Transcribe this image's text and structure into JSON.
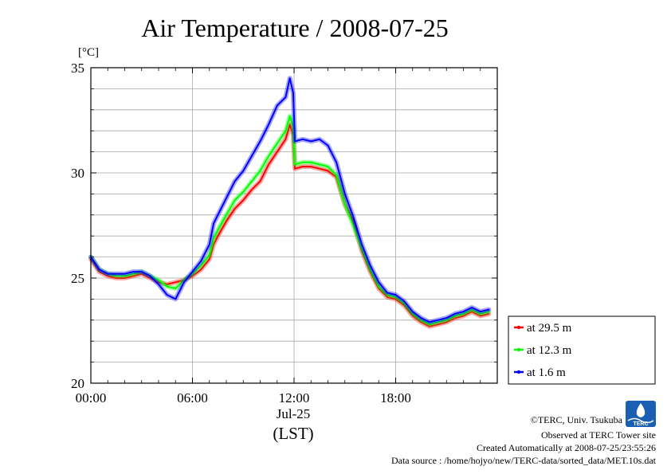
{
  "chart_data": {
    "type": "line",
    "title": "Air Temperature / 2008-07-25",
    "ylabel": "[°C]",
    "xlabel": "(LST)",
    "x_date_label": "Jul-25",
    "ylim": [
      20,
      35
    ],
    "xlim": [
      0,
      24
    ],
    "y_ticks": [
      20,
      25,
      30,
      35
    ],
    "y_minor_step": 1,
    "x_ticks": [
      {
        "x": 0,
        "label": "00:00"
      },
      {
        "x": 6,
        "label": "06:00"
      },
      {
        "x": 12,
        "label": "12:00"
      },
      {
        "x": 18,
        "label": "18:00"
      }
    ],
    "grid": true,
    "legend": "right",
    "series": [
      {
        "name": "at 29.5 m",
        "color": "#ff0000",
        "x": [
          0,
          0.5,
          1,
          1.5,
          2,
          2.5,
          3,
          3.5,
          4,
          4.5,
          5,
          5.5,
          6,
          6.5,
          7,
          7.25,
          7.5,
          8,
          8.5,
          9,
          9.5,
          10,
          10.5,
          11,
          11.5,
          11.75,
          11.95,
          12.05,
          12.5,
          13,
          13.5,
          14,
          14.5,
          15,
          15.5,
          16,
          16.5,
          17,
          17.5,
          18,
          18.5,
          19,
          19.5,
          20,
          20.5,
          21,
          21.5,
          22,
          22.5,
          23,
          23.5
        ],
        "values": [
          25.9,
          25.3,
          25.1,
          25.0,
          25.0,
          25.1,
          25.2,
          25.0,
          24.8,
          24.7,
          24.8,
          24.9,
          25.1,
          25.4,
          25.9,
          26.6,
          27.0,
          27.7,
          28.3,
          28.7,
          29.2,
          29.6,
          30.4,
          31.0,
          31.6,
          32.3,
          31.8,
          30.2,
          30.3,
          30.3,
          30.2,
          30.1,
          29.8,
          28.5,
          27.7,
          26.3,
          25.3,
          24.5,
          24.1,
          24.0,
          23.7,
          23.2,
          22.9,
          22.7,
          22.8,
          22.9,
          23.1,
          23.2,
          23.4,
          23.2,
          23.3
        ]
      },
      {
        "name": "at 12.3 m",
        "color": "#00ff00",
        "x": [
          0,
          0.5,
          1,
          1.5,
          2,
          2.5,
          3,
          3.5,
          4,
          4.5,
          5,
          5.5,
          6,
          6.5,
          7,
          7.25,
          7.5,
          8,
          8.5,
          9,
          9.5,
          10,
          10.5,
          11,
          11.5,
          11.75,
          11.95,
          12.05,
          12.5,
          13,
          13.5,
          14,
          14.5,
          15,
          15.5,
          16,
          16.5,
          17,
          17.5,
          18,
          18.5,
          19,
          19.5,
          20,
          20.5,
          21,
          21.5,
          22,
          22.5,
          23,
          23.5
        ],
        "values": [
          26.0,
          25.4,
          25.2,
          25.1,
          25.1,
          25.2,
          25.3,
          25.1,
          24.9,
          24.6,
          24.5,
          24.9,
          25.2,
          25.6,
          26.1,
          26.9,
          27.3,
          28.0,
          28.7,
          29.1,
          29.6,
          30.1,
          30.8,
          31.4,
          32.0,
          32.7,
          32.2,
          30.4,
          30.5,
          30.5,
          30.4,
          30.3,
          29.9,
          28.5,
          27.5,
          26.4,
          25.4,
          24.6,
          24.2,
          24.1,
          23.8,
          23.3,
          23.0,
          22.8,
          22.9,
          23.0,
          23.2,
          23.3,
          23.5,
          23.3,
          23.4
        ]
      },
      {
        "name": "at 1.6 m",
        "color": "#0000ff",
        "x": [
          0,
          0.5,
          1,
          1.5,
          2,
          2.5,
          3,
          3.5,
          4,
          4.5,
          5,
          5.5,
          6,
          6.5,
          7,
          7.25,
          7.5,
          8,
          8.5,
          9,
          9.5,
          10,
          10.5,
          11,
          11.5,
          11.75,
          11.95,
          12.05,
          12.5,
          13,
          13.5,
          14,
          14.5,
          15,
          15.5,
          16,
          16.5,
          17,
          17.5,
          18,
          18.5,
          19,
          19.5,
          20,
          20.5,
          21,
          21.5,
          22,
          22.5,
          23,
          23.5
        ],
        "values": [
          26.0,
          25.4,
          25.2,
          25.2,
          25.2,
          25.3,
          25.3,
          25.1,
          24.7,
          24.2,
          24.0,
          24.8,
          25.3,
          25.8,
          26.6,
          27.6,
          28.0,
          28.8,
          29.6,
          30.1,
          30.8,
          31.5,
          32.3,
          33.2,
          33.6,
          34.5,
          33.8,
          31.5,
          31.6,
          31.5,
          31.6,
          31.3,
          30.5,
          29.0,
          27.9,
          26.6,
          25.6,
          24.8,
          24.3,
          24.2,
          23.9,
          23.4,
          23.1,
          22.9,
          23.0,
          23.1,
          23.3,
          23.4,
          23.6,
          23.4,
          23.5
        ]
      }
    ]
  },
  "footer": {
    "copyright": "©TERC, Univ. Tsukuba",
    "site": "Observed at TERC Tower site",
    "created": "Created Automatically at 2008-07-25/23:55:26",
    "source": "Data source : /home/hojyo/new/TERC-data/sorted_data/MET.10s.dat"
  },
  "logo": {
    "text": "TERC",
    "color": "#1a5fb4"
  }
}
